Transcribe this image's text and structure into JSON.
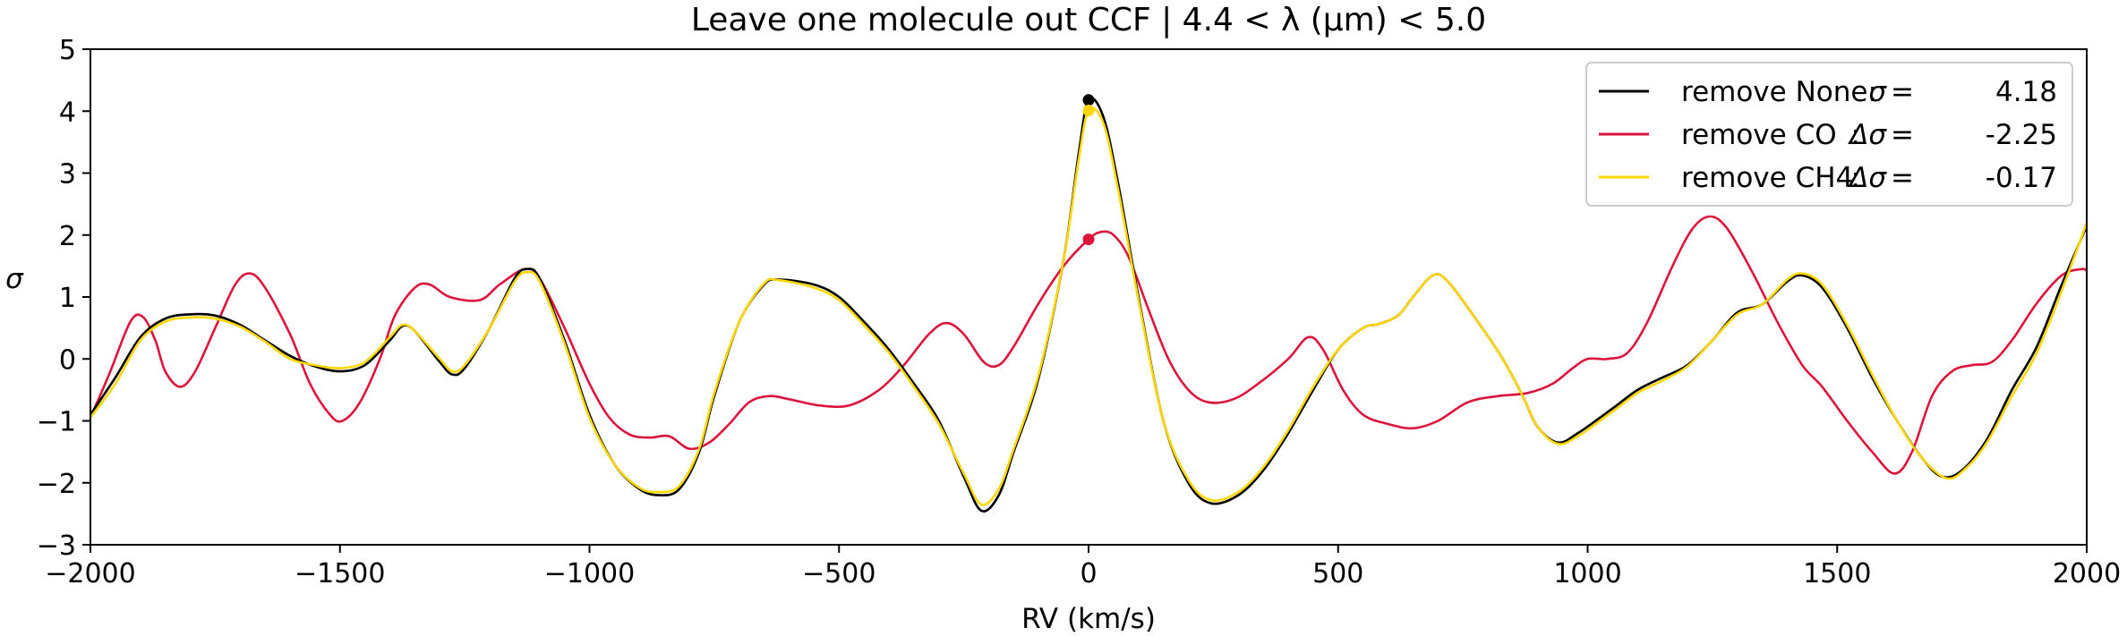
{
  "chart_data": {
    "type": "line",
    "title": "Leave one molecule out CCF | 4.4 < λ (μm) < 5.0",
    "xlabel": "RV (km/s)",
    "ylabel": "σ",
    "xlim": [
      -2000,
      2000
    ],
    "ylim": [
      -3,
      5
    ],
    "xticks": [
      -2000,
      -1500,
      -1000,
      -500,
      0,
      500,
      1000,
      1500,
      2000
    ],
    "yticks": [
      -3,
      -2,
      -1,
      0,
      1,
      2,
      3,
      4,
      5
    ],
    "xtick_labels": [
      "−2000",
      "−1500",
      "−1000",
      "−500",
      "0",
      "500",
      "1000",
      "1500",
      "2000"
    ],
    "ytick_labels": [
      "−3",
      "−2",
      "−1",
      "0",
      "1",
      "2",
      "3",
      "4",
      "5"
    ],
    "legend_location": "upper right",
    "series": [
      {
        "name": "remove None",
        "color": "#000000",
        "legend_prefix": "remove None:",
        "legend_symbol": "σ",
        "legend_value": "4.18",
        "marker": {
          "x": 0,
          "y": 4.18
        },
        "points": [
          [
            -2000,
            -0.9
          ],
          [
            -1950,
            -0.3
          ],
          [
            -1900,
            0.35
          ],
          [
            -1850,
            0.65
          ],
          [
            -1800,
            0.72
          ],
          [
            -1750,
            0.7
          ],
          [
            -1700,
            0.55
          ],
          [
            -1650,
            0.3
          ],
          [
            -1600,
            0.05
          ],
          [
            -1550,
            -0.12
          ],
          [
            -1500,
            -0.2
          ],
          [
            -1450,
            -0.1
          ],
          [
            -1400,
            0.3
          ],
          [
            -1375,
            0.53
          ],
          [
            -1350,
            0.45
          ],
          [
            -1300,
            -0.05
          ],
          [
            -1275,
            -0.25
          ],
          [
            -1250,
            -0.15
          ],
          [
            -1200,
            0.5
          ],
          [
            -1150,
            1.3
          ],
          [
            -1125,
            1.45
          ],
          [
            -1100,
            1.3
          ],
          [
            -1050,
            0.3
          ],
          [
            -1000,
            -0.9
          ],
          [
            -950,
            -1.7
          ],
          [
            -900,
            -2.1
          ],
          [
            -860,
            -2.2
          ],
          [
            -820,
            -2.1
          ],
          [
            -780,
            -1.5
          ],
          [
            -750,
            -0.6
          ],
          [
            -700,
            0.6
          ],
          [
            -650,
            1.2
          ],
          [
            -620,
            1.28
          ],
          [
            -550,
            1.2
          ],
          [
            -500,
            1.0
          ],
          [
            -450,
            0.6
          ],
          [
            -400,
            0.15
          ],
          [
            -350,
            -0.4
          ],
          [
            -300,
            -1.0
          ],
          [
            -250,
            -1.9
          ],
          [
            -215,
            -2.45
          ],
          [
            -180,
            -2.2
          ],
          [
            -150,
            -1.5
          ],
          [
            -100,
            -0.3
          ],
          [
            -50,
            1.6
          ],
          [
            -20,
            3.3
          ],
          [
            0,
            4.18
          ],
          [
            30,
            3.9
          ],
          [
            60,
            2.8
          ],
          [
            100,
            1.0
          ],
          [
            150,
            -1.0
          ],
          [
            200,
            -2.0
          ],
          [
            245,
            -2.33
          ],
          [
            300,
            -2.2
          ],
          [
            350,
            -1.8
          ],
          [
            400,
            -1.2
          ],
          [
            450,
            -0.5
          ],
          [
            500,
            0.15
          ],
          [
            550,
            0.5
          ],
          [
            580,
            0.56
          ],
          [
            620,
            0.7
          ],
          [
            650,
            1.0
          ],
          [
            690,
            1.35
          ],
          [
            720,
            1.25
          ],
          [
            780,
            0.6
          ],
          [
            830,
            0.0
          ],
          [
            870,
            -0.6
          ],
          [
            900,
            -1.1
          ],
          [
            940,
            -1.35
          ],
          [
            980,
            -1.2
          ],
          [
            1050,
            -0.8
          ],
          [
            1100,
            -0.5
          ],
          [
            1150,
            -0.3
          ],
          [
            1200,
            -0.1
          ],
          [
            1250,
            0.3
          ],
          [
            1300,
            0.75
          ],
          [
            1350,
            0.88
          ],
          [
            1400,
            1.25
          ],
          [
            1430,
            1.35
          ],
          [
            1470,
            1.15
          ],
          [
            1520,
            0.5
          ],
          [
            1570,
            -0.3
          ],
          [
            1620,
            -1.0
          ],
          [
            1670,
            -1.6
          ],
          [
            1710,
            -1.9
          ],
          [
            1750,
            -1.8
          ],
          [
            1800,
            -1.3
          ],
          [
            1850,
            -0.5
          ],
          [
            1900,
            0.2
          ],
          [
            1950,
            1.2
          ],
          [
            2000,
            2.15
          ]
        ]
      },
      {
        "name": "remove CO",
        "color": "#dc143c",
        "legend_prefix": "remove CO",
        "legend_symbol": "Δσ",
        "legend_value": "-2.25",
        "marker": {
          "x": 0,
          "y": 1.93
        },
        "points": [
          [
            -2000,
            -0.95
          ],
          [
            -1960,
            -0.2
          ],
          [
            -1920,
            0.6
          ],
          [
            -1895,
            0.68
          ],
          [
            -1870,
            0.3
          ],
          [
            -1850,
            -0.2
          ],
          [
            -1820,
            -0.45
          ],
          [
            -1790,
            -0.2
          ],
          [
            -1750,
            0.5
          ],
          [
            -1710,
            1.2
          ],
          [
            -1680,
            1.38
          ],
          [
            -1650,
            1.15
          ],
          [
            -1600,
            0.4
          ],
          [
            -1560,
            -0.4
          ],
          [
            -1520,
            -0.9
          ],
          [
            -1495,
            -1.0
          ],
          [
            -1460,
            -0.7
          ],
          [
            -1420,
            0.0
          ],
          [
            -1390,
            0.7
          ],
          [
            -1350,
            1.15
          ],
          [
            -1320,
            1.2
          ],
          [
            -1280,
            1.0
          ],
          [
            -1220,
            0.95
          ],
          [
            -1180,
            1.2
          ],
          [
            -1130,
            1.45
          ],
          [
            -1100,
            1.3
          ],
          [
            -1050,
            0.5
          ],
          [
            -1000,
            -0.4
          ],
          [
            -960,
            -0.95
          ],
          [
            -920,
            -1.22
          ],
          [
            -880,
            -1.27
          ],
          [
            -840,
            -1.25
          ],
          [
            -800,
            -1.45
          ],
          [
            -760,
            -1.35
          ],
          [
            -720,
            -1.05
          ],
          [
            -680,
            -0.7
          ],
          [
            -640,
            -0.6
          ],
          [
            -600,
            -0.65
          ],
          [
            -540,
            -0.75
          ],
          [
            -480,
            -0.75
          ],
          [
            -420,
            -0.5
          ],
          [
            -370,
            -0.1
          ],
          [
            -320,
            0.4
          ],
          [
            -285,
            0.58
          ],
          [
            -250,
            0.4
          ],
          [
            -210,
            -0.05
          ],
          [
            -180,
            -0.1
          ],
          [
            -150,
            0.2
          ],
          [
            -100,
            0.9
          ],
          [
            -50,
            1.5
          ],
          [
            0,
            1.93
          ],
          [
            25,
            2.05
          ],
          [
            50,
            2.0
          ],
          [
            80,
            1.65
          ],
          [
            120,
            0.8
          ],
          [
            160,
            0.0
          ],
          [
            200,
            -0.5
          ],
          [
            240,
            -0.7
          ],
          [
            290,
            -0.65
          ],
          [
            340,
            -0.4
          ],
          [
            400,
            0.0
          ],
          [
            440,
            0.35
          ],
          [
            470,
            0.15
          ],
          [
            510,
            -0.5
          ],
          [
            550,
            -0.9
          ],
          [
            600,
            -1.05
          ],
          [
            650,
            -1.12
          ],
          [
            700,
            -1.0
          ],
          [
            760,
            -0.7
          ],
          [
            820,
            -0.6
          ],
          [
            880,
            -0.55
          ],
          [
            930,
            -0.4
          ],
          [
            970,
            -0.15
          ],
          [
            1000,
            0.0
          ],
          [
            1040,
            0.0
          ],
          [
            1080,
            0.1
          ],
          [
            1120,
            0.6
          ],
          [
            1170,
            1.5
          ],
          [
            1210,
            2.1
          ],
          [
            1245,
            2.3
          ],
          [
            1280,
            2.1
          ],
          [
            1330,
            1.4
          ],
          [
            1380,
            0.6
          ],
          [
            1430,
            -0.1
          ],
          [
            1470,
            -0.45
          ],
          [
            1520,
            -1.0
          ],
          [
            1570,
            -1.5
          ],
          [
            1615,
            -1.85
          ],
          [
            1650,
            -1.5
          ],
          [
            1690,
            -0.6
          ],
          [
            1730,
            -0.2
          ],
          [
            1770,
            -0.1
          ],
          [
            1810,
            -0.05
          ],
          [
            1850,
            0.3
          ],
          [
            1900,
            0.9
          ],
          [
            1950,
            1.35
          ],
          [
            1990,
            1.45
          ],
          [
            2000,
            1.42
          ]
        ]
      },
      {
        "name": "remove CH4",
        "color": "#ffd700",
        "legend_prefix": "remove CH4",
        "legend_symbol": "Δσ",
        "legend_value": "-0.17",
        "marker": {
          "x": 0,
          "y": 4.01
        },
        "points": [
          [
            -2000,
            -0.95
          ],
          [
            -1950,
            -0.4
          ],
          [
            -1900,
            0.3
          ],
          [
            -1850,
            0.6
          ],
          [
            -1800,
            0.67
          ],
          [
            -1750,
            0.65
          ],
          [
            -1700,
            0.52
          ],
          [
            -1650,
            0.28
          ],
          [
            -1600,
            0.0
          ],
          [
            -1550,
            -0.1
          ],
          [
            -1500,
            -0.15
          ],
          [
            -1450,
            -0.05
          ],
          [
            -1400,
            0.35
          ],
          [
            -1375,
            0.55
          ],
          [
            -1350,
            0.45
          ],
          [
            -1300,
            0.0
          ],
          [
            -1275,
            -0.2
          ],
          [
            -1250,
            -0.1
          ],
          [
            -1200,
            0.5
          ],
          [
            -1150,
            1.25
          ],
          [
            -1125,
            1.4
          ],
          [
            -1100,
            1.25
          ],
          [
            -1050,
            0.25
          ],
          [
            -1000,
            -0.95
          ],
          [
            -950,
            -1.7
          ],
          [
            -900,
            -2.08
          ],
          [
            -860,
            -2.15
          ],
          [
            -820,
            -2.05
          ],
          [
            -780,
            -1.45
          ],
          [
            -750,
            -0.55
          ],
          [
            -700,
            0.6
          ],
          [
            -650,
            1.22
          ],
          [
            -620,
            1.27
          ],
          [
            -550,
            1.15
          ],
          [
            -500,
            0.95
          ],
          [
            -450,
            0.55
          ],
          [
            -400,
            0.1
          ],
          [
            -350,
            -0.45
          ],
          [
            -300,
            -1.05
          ],
          [
            -250,
            -1.85
          ],
          [
            -215,
            -2.35
          ],
          [
            -180,
            -2.1
          ],
          [
            -150,
            -1.45
          ],
          [
            -100,
            -0.25
          ],
          [
            -50,
            1.6
          ],
          [
            -20,
            3.2
          ],
          [
            0,
            4.01
          ],
          [
            30,
            3.8
          ],
          [
            60,
            2.7
          ],
          [
            100,
            0.95
          ],
          [
            150,
            -1.0
          ],
          [
            200,
            -1.95
          ],
          [
            245,
            -2.28
          ],
          [
            300,
            -2.15
          ],
          [
            350,
            -1.75
          ],
          [
            400,
            -1.15
          ],
          [
            450,
            -0.45
          ],
          [
            500,
            0.15
          ],
          [
            550,
            0.5
          ],
          [
            580,
            0.56
          ],
          [
            620,
            0.7
          ],
          [
            650,
            1.0
          ],
          [
            690,
            1.35
          ],
          [
            720,
            1.25
          ],
          [
            780,
            0.6
          ],
          [
            830,
            0.0
          ],
          [
            870,
            -0.6
          ],
          [
            900,
            -1.1
          ],
          [
            940,
            -1.37
          ],
          [
            980,
            -1.25
          ],
          [
            1050,
            -0.85
          ],
          [
            1100,
            -0.55
          ],
          [
            1150,
            -0.35
          ],
          [
            1200,
            -0.12
          ],
          [
            1250,
            0.3
          ],
          [
            1300,
            0.72
          ],
          [
            1350,
            0.88
          ],
          [
            1400,
            1.28
          ],
          [
            1430,
            1.38
          ],
          [
            1470,
            1.2
          ],
          [
            1520,
            0.55
          ],
          [
            1570,
            -0.25
          ],
          [
            1620,
            -1.0
          ],
          [
            1670,
            -1.6
          ],
          [
            1720,
            -1.93
          ],
          [
            1760,
            -1.75
          ],
          [
            1800,
            -1.35
          ],
          [
            1850,
            -0.6
          ],
          [
            1900,
            0.1
          ],
          [
            1950,
            1.1
          ],
          [
            2000,
            2.2
          ]
        ]
      }
    ]
  }
}
